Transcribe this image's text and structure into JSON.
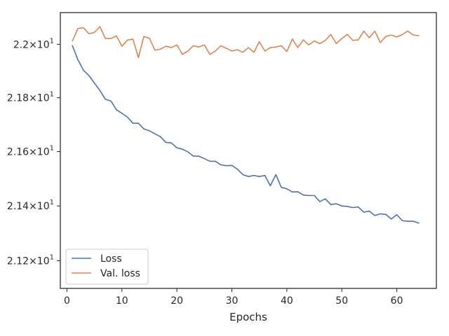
{
  "chart_data": {
    "type": "line",
    "title": "",
    "xlabel": "Epochs",
    "ylabel": "",
    "y_scale": "log",
    "grid": false,
    "legend_position": "lower-left",
    "xlim": [
      -1.2,
      67.2
    ],
    "ylim": [
      21.1,
      22.12
    ],
    "x_ticks": [
      0,
      10,
      20,
      30,
      40,
      50,
      60
    ],
    "x_tick_labels": [
      "0",
      "10",
      "20",
      "30",
      "40",
      "50",
      "60"
    ],
    "y_ticks": [
      {
        "value": 21.2,
        "mantissa": "2.12",
        "exp": "1"
      },
      {
        "value": 21.4,
        "mantissa": "2.14",
        "exp": "1"
      },
      {
        "value": 21.6,
        "mantissa": "2.16",
        "exp": "1"
      },
      {
        "value": 21.8,
        "mantissa": "2.18",
        "exp": "1"
      },
      {
        "value": 22.0,
        "mantissa": "2.2",
        "exp": "1"
      }
    ],
    "x": [
      1,
      2,
      3,
      4,
      5,
      6,
      7,
      8,
      9,
      10,
      11,
      12,
      13,
      14,
      15,
      16,
      17,
      18,
      19,
      20,
      21,
      22,
      23,
      24,
      25,
      26,
      27,
      28,
      29,
      30,
      31,
      32,
      33,
      34,
      35,
      36,
      37,
      38,
      39,
      40,
      41,
      42,
      43,
      44,
      45,
      46,
      47,
      48,
      49,
      50,
      51,
      52,
      53,
      54,
      55,
      56,
      57,
      58,
      59,
      60,
      61,
      62,
      63,
      64
    ],
    "series": [
      {
        "name": "Loss",
        "color": "#4c72b0",
        "values": [
          21.995,
          21.942,
          21.903,
          21.883,
          21.855,
          21.827,
          21.794,
          21.788,
          21.755,
          21.742,
          21.728,
          21.705,
          21.705,
          21.684,
          21.677,
          21.666,
          21.655,
          21.634,
          21.632,
          21.614,
          21.609,
          21.599,
          21.583,
          21.583,
          21.574,
          21.564,
          21.564,
          21.551,
          21.548,
          21.549,
          21.535,
          21.515,
          21.508,
          21.512,
          21.508,
          21.512,
          21.474,
          21.515,
          21.468,
          21.463,
          21.451,
          21.452,
          21.44,
          21.438,
          21.438,
          21.416,
          21.426,
          21.405,
          21.408,
          21.4,
          21.398,
          21.394,
          21.396,
          21.377,
          21.381,
          21.365,
          21.371,
          21.369,
          21.352,
          21.368,
          21.346,
          21.344,
          21.344,
          21.337
        ]
      },
      {
        "name": "Val. loss",
        "color": "#dd8452",
        "values": [
          22.013,
          22.06,
          22.063,
          22.04,
          22.045,
          22.067,
          22.022,
          22.022,
          22.032,
          21.993,
          22.016,
          22.02,
          21.95,
          22.03,
          22.023,
          21.978,
          21.982,
          21.993,
          21.988,
          21.998,
          21.962,
          21.975,
          21.995,
          21.99,
          21.998,
          21.962,
          21.975,
          21.995,
          21.985,
          21.975,
          21.98,
          21.97,
          21.988,
          21.97,
          22.01,
          21.975,
          21.988,
          21.99,
          21.995,
          21.973,
          22.02,
          21.988,
          22.017,
          21.998,
          22.013,
          22.003,
          22.015,
          22.037,
          22.003,
          22.022,
          22.038,
          22.015,
          22.017,
          22.05,
          22.025,
          22.05,
          22.007,
          22.03,
          22.035,
          22.028,
          22.037,
          22.05,
          22.035,
          22.033
        ]
      }
    ]
  }
}
